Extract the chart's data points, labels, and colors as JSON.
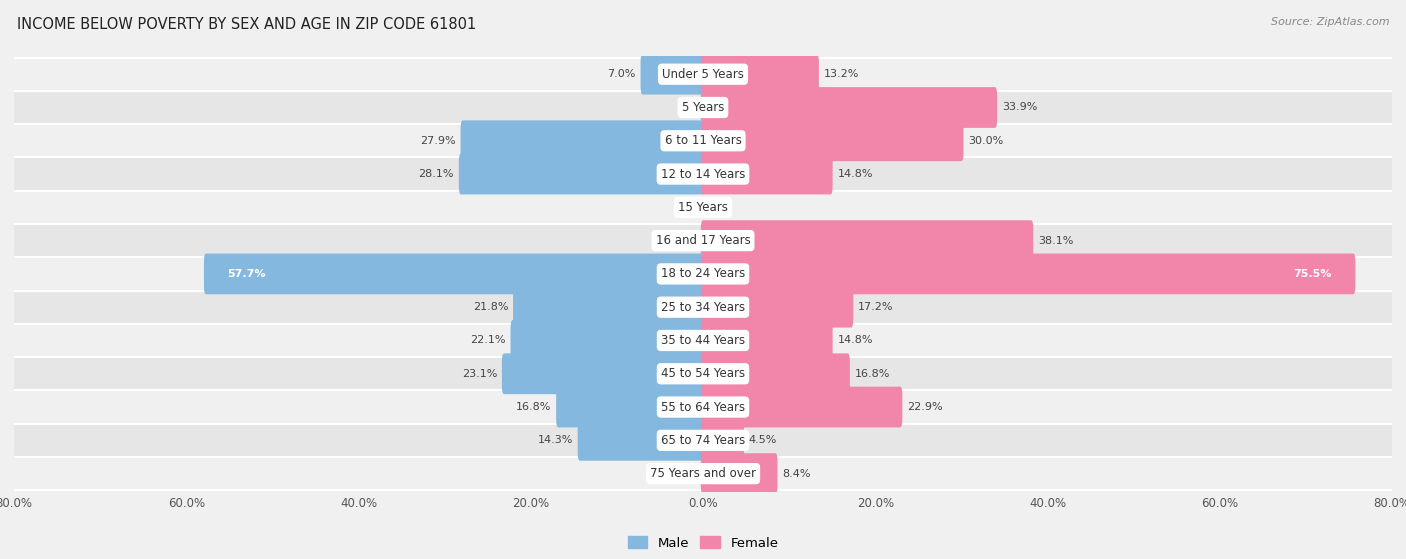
{
  "title": "INCOME BELOW POVERTY BY SEX AND AGE IN ZIP CODE 61801",
  "source": "Source: ZipAtlas.com",
  "categories": [
    "Under 5 Years",
    "5 Years",
    "6 to 11 Years",
    "12 to 14 Years",
    "15 Years",
    "16 and 17 Years",
    "18 to 24 Years",
    "25 to 34 Years",
    "35 to 44 Years",
    "45 to 54 Years",
    "55 to 64 Years",
    "65 to 74 Years",
    "75 Years and over"
  ],
  "male_values": [
    7.0,
    0.0,
    27.9,
    28.1,
    0.0,
    0.0,
    57.7,
    21.8,
    22.1,
    23.1,
    16.8,
    14.3,
    0.0
  ],
  "female_values": [
    13.2,
    33.9,
    30.0,
    14.8,
    0.0,
    38.1,
    75.5,
    17.2,
    14.8,
    16.8,
    22.9,
    4.5,
    8.4
  ],
  "male_color": "#85b8de",
  "female_color": "#f285aa",
  "bar_height": 0.72,
  "xlim": 80.0,
  "row_colors": [
    "#f0f0f0",
    "#e6e6e6"
  ],
  "label_color": "#555555",
  "title_color": "#333333",
  "legend_male": "Male",
  "legend_female": "Female",
  "value_label_fontsize": 8.0,
  "category_fontsize": 8.5
}
